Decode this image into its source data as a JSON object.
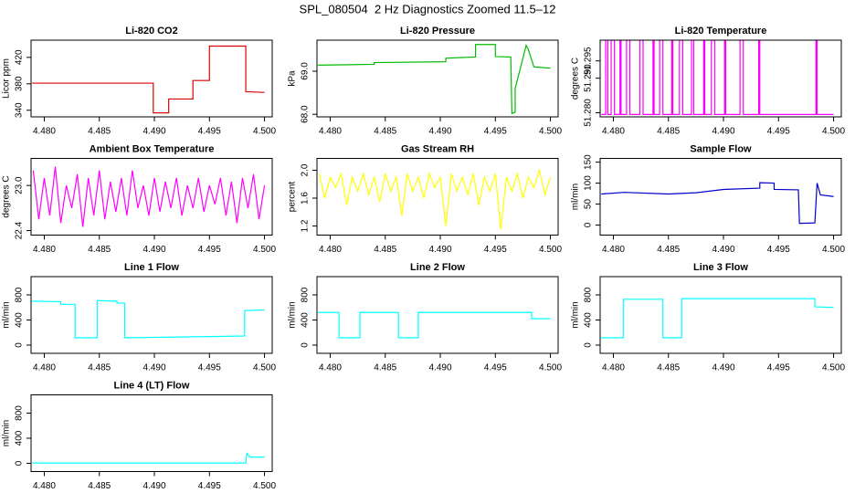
{
  "title": "SPL_080504  2 Hz Diagnostics Zoomed 11.5–12",
  "chart_data": [
    {
      "type": "line",
      "title": "Li-820 CO2",
      "ylabel": "Licor ppm",
      "color": "#dd0000",
      "x": [
        4.4789,
        4.4899,
        4.4899,
        4.4913,
        4.4913,
        4.4935,
        4.4935,
        4.495,
        4.495,
        4.4983,
        4.4983,
        4.5
      ],
      "values": [
        381,
        381,
        336,
        336,
        357,
        357,
        385,
        385,
        437,
        437,
        368,
        367
      ],
      "xlim": [
        4.4788,
        4.5007
      ],
      "xticks": [
        {
          "value": 4.48,
          "label": "4.480"
        },
        {
          "value": 4.485,
          "label": "4.485"
        },
        {
          "value": 4.49,
          "label": "4.490"
        },
        {
          "value": 4.495,
          "label": "4.495"
        },
        {
          "value": 4.5,
          "label": "4.500"
        }
      ],
      "ylim": [
        330,
        446
      ],
      "yticks": [
        340,
        380,
        420
      ]
    },
    {
      "type": "line",
      "title": "Li-820 Pressure",
      "ylabel": "kPa",
      "color": "#00bb00",
      "x": [
        4.4789,
        4.484,
        4.484,
        4.4905,
        4.4905,
        4.4932,
        4.4932,
        4.495,
        4.495,
        4.4964,
        4.4965,
        4.4968,
        4.4968,
        4.4978,
        4.498,
        4.4985,
        4.5
      ],
      "values": [
        69.14,
        69.16,
        69.2,
        69.22,
        69.3,
        69.33,
        69.62,
        69.62,
        69.34,
        69.33,
        68.02,
        68.05,
        68.6,
        69.6,
        69.5,
        69.1,
        69.07
      ],
      "xlim": [
        4.4788,
        4.5007
      ],
      "xticks": [
        {
          "value": 4.48,
          "label": "4.480"
        },
        {
          "value": 4.485,
          "label": "4.485"
        },
        {
          "value": 4.49,
          "label": "4.490"
        },
        {
          "value": 4.495,
          "label": "4.495"
        },
        {
          "value": 4.5,
          "label": "4.500"
        }
      ],
      "ylim": [
        67.94,
        69.72
      ],
      "yticks": [
        {
          "value": 68,
          "label": "68.0"
        },
        {
          "value": 69,
          "label": "69.0"
        }
      ]
    },
    {
      "type": "line",
      "title": "Li-820 Temperature",
      "ylabel": "degrees C",
      "color": "#ff00ff",
      "x": [
        4.4789,
        4.4793,
        4.4793,
        4.4795,
        4.4795,
        4.4798,
        4.4798,
        4.4801,
        4.4801,
        4.4806,
        4.4806,
        4.4807,
        4.4807,
        4.4812,
        4.4812,
        4.4815,
        4.4815,
        4.4824,
        4.4824,
        4.4827,
        4.4827,
        4.4836,
        4.4836,
        4.4837,
        4.4837,
        4.4842,
        4.4842,
        4.4845,
        4.4845,
        4.4853,
        4.4853,
        4.4854,
        4.4854,
        4.486,
        4.486,
        4.4863,
        4.4863,
        4.4871,
        4.4871,
        4.4873,
        4.4873,
        4.4882,
        4.4882,
        4.4883,
        4.4883,
        4.4889,
        4.4889,
        4.4892,
        4.4892,
        4.4901,
        4.4901,
        4.4902,
        4.4902,
        4.4915,
        4.4915,
        4.4918,
        4.4918,
        4.4932,
        4.4932,
        4.4933,
        4.4933,
        4.4984,
        4.4984,
        4.4985,
        4.4985,
        4.5
      ],
      "values": [
        51.2795,
        51.2795,
        51.301,
        51.301,
        51.2795,
        51.2795,
        51.301,
        51.301,
        51.2795,
        51.2795,
        51.301,
        51.301,
        51.2795,
        51.2795,
        51.301,
        51.301,
        51.2795,
        51.2795,
        51.301,
        51.301,
        51.2795,
        51.2795,
        51.301,
        51.301,
        51.2795,
        51.2795,
        51.301,
        51.301,
        51.2795,
        51.2795,
        51.301,
        51.301,
        51.2795,
        51.2795,
        51.301,
        51.301,
        51.2795,
        51.2795,
        51.301,
        51.301,
        51.2795,
        51.2795,
        51.301,
        51.301,
        51.2795,
        51.2795,
        51.301,
        51.301,
        51.2795,
        51.2795,
        51.301,
        51.301,
        51.2795,
        51.2795,
        51.301,
        51.301,
        51.2795,
        51.2795,
        51.301,
        51.301,
        51.2795,
        51.2795,
        51.301,
        51.301,
        51.2795,
        51.2795
      ],
      "xlim": [
        4.4788,
        4.5007
      ],
      "xticks": [
        {
          "value": 4.48,
          "label": "4.480"
        },
        {
          "value": 4.485,
          "label": "4.485"
        },
        {
          "value": 4.49,
          "label": "4.490"
        },
        {
          "value": 4.495,
          "label": "4.495"
        },
        {
          "value": 4.5,
          "label": "4.500"
        }
      ],
      "ylim": [
        51.2788,
        51.301
      ],
      "yticks": [
        {
          "value": 51.28,
          "label": "51.280"
        },
        {
          "value": 51.29,
          "label": "51.290"
        },
        {
          "value": 51.295,
          "label": "51.295"
        }
      ]
    },
    {
      "type": "line",
      "title": "Ambient Box Temperature",
      "ylabel": "degrees C",
      "color": "#ff00ff",
      "x": [
        4.479,
        4.4795,
        4.48,
        4.4805,
        4.481,
        4.4815,
        4.482,
        4.4825,
        4.483,
        4.4835,
        4.484,
        4.4845,
        4.485,
        4.4855,
        4.486,
        4.4865,
        4.487,
        4.4875,
        4.488,
        4.4885,
        4.489,
        4.4895,
        4.49,
        4.4905,
        4.491,
        4.4915,
        4.492,
        4.4925,
        4.493,
        4.4935,
        4.494,
        4.4945,
        4.495,
        4.4955,
        4.496,
        4.4965,
        4.497,
        4.4975,
        4.498,
        4.4985,
        4.499,
        4.4995,
        4.5
      ],
      "values": [
        23.2,
        22.55,
        23.1,
        22.6,
        23.25,
        22.5,
        23.0,
        22.7,
        23.15,
        22.45,
        23.1,
        22.6,
        23.2,
        22.55,
        23.05,
        22.65,
        23.1,
        22.6,
        23.2,
        22.7,
        23.0,
        22.6,
        23.1,
        22.65,
        23.05,
        22.7,
        23.1,
        22.6,
        23.0,
        22.7,
        23.1,
        22.65,
        23.0,
        22.75,
        23.1,
        22.6,
        23.05,
        22.5,
        23.1,
        22.7,
        23.15,
        22.55,
        23.0
      ],
      "xlim": [
        4.4788,
        4.5007
      ],
      "xticks": [
        {
          "value": 4.48,
          "label": "4.480"
        },
        {
          "value": 4.485,
          "label": "4.485"
        },
        {
          "value": 4.49,
          "label": "4.490"
        },
        {
          "value": 4.495,
          "label": "4.495"
        },
        {
          "value": 4.5,
          "label": "4.500"
        }
      ],
      "ylim": [
        22.34,
        23.36
      ],
      "yticks": [
        22.4,
        {
          "value": 23,
          "label": "23.0"
        }
      ]
    },
    {
      "type": "line",
      "title": "Gas Stream RH",
      "ylabel": "percent",
      "color": "#ffff00",
      "x": [
        4.479,
        4.4795,
        4.48,
        4.4805,
        4.481,
        4.4815,
        4.482,
        4.4825,
        4.483,
        4.4835,
        4.484,
        4.4845,
        4.485,
        4.4855,
        4.486,
        4.4865,
        4.487,
        4.4875,
        4.488,
        4.4885,
        4.489,
        4.4895,
        4.49,
        4.4905,
        4.491,
        4.4915,
        4.492,
        4.4925,
        4.493,
        4.4935,
        4.494,
        4.4945,
        4.495,
        4.4955,
        4.496,
        4.4965,
        4.497,
        4.4975,
        4.498,
        4.4985,
        4.499,
        4.4995,
        4.5
      ],
      "values": [
        1.95,
        1.6,
        1.9,
        1.75,
        1.95,
        1.5,
        1.9,
        1.7,
        1.95,
        1.65,
        1.9,
        1.55,
        1.95,
        1.7,
        1.9,
        1.35,
        1.95,
        1.7,
        1.9,
        1.6,
        1.95,
        1.75,
        1.9,
        1.2,
        1.95,
        1.7,
        1.9,
        1.65,
        1.95,
        1.5,
        1.9,
        1.7,
        1.95,
        1.15,
        1.9,
        1.7,
        1.95,
        1.6,
        1.9,
        1.75,
        2.0,
        1.65,
        1.9
      ],
      "xlim": [
        4.4788,
        4.5007
      ],
      "xticks": [
        {
          "value": 4.48,
          "label": "4.480"
        },
        {
          "value": 4.485,
          "label": "4.485"
        },
        {
          "value": 4.49,
          "label": "4.490"
        },
        {
          "value": 4.495,
          "label": "4.495"
        },
        {
          "value": 4.5,
          "label": "4.500"
        }
      ],
      "ylim": [
        1.07,
        2.17
      ],
      "yticks": [
        1.2,
        1.6,
        {
          "value": 2,
          "label": "2.0"
        }
      ]
    },
    {
      "type": "line",
      "title": "Sample Flow",
      "ylabel": "ml/min",
      "color": "#0000cc",
      "x": [
        4.4789,
        4.481,
        4.485,
        4.4875,
        4.49,
        4.4933,
        4.4933,
        4.4946,
        4.4946,
        4.4968,
        4.4969,
        4.4983,
        4.4985,
        4.4988,
        4.5
      ],
      "values": [
        74,
        78,
        74,
        77,
        85,
        88,
        101,
        100,
        85,
        84,
        4,
        5,
        100,
        72,
        68
      ],
      "xlim": [
        4.4788,
        4.5007
      ],
      "xticks": [
        {
          "value": 4.48,
          "label": "4.480"
        },
        {
          "value": 4.485,
          "label": "4.485"
        },
        {
          "value": 4.49,
          "label": "4.490"
        },
        {
          "value": 4.495,
          "label": "4.495"
        },
        {
          "value": 4.5,
          "label": "4.500"
        }
      ],
      "ylim": [
        -24,
        159
      ],
      "yticks": [
        0,
        50,
        100,
        150
      ]
    },
    {
      "type": "line",
      "title": "Line 1 Flow",
      "ylabel": "ml/min",
      "color": "#00ffff",
      "x": [
        4.4789,
        4.4815,
        4.4815,
        4.4828,
        4.4828,
        4.4848,
        4.4848,
        4.4866,
        4.4866,
        4.4873,
        4.4873,
        4.4982,
        4.4982,
        4.5
      ],
      "values": [
        700,
        690,
        650,
        650,
        116,
        116,
        710,
        700,
        670,
        670,
        116,
        145,
        550,
        560
      ],
      "xlim": [
        4.4788,
        4.5007
      ],
      "xticks": [
        {
          "value": 4.48,
          "label": "4.480"
        },
        {
          "value": 4.485,
          "label": "4.485"
        },
        {
          "value": 4.49,
          "label": "4.490"
        },
        {
          "value": 4.495,
          "label": "4.495"
        },
        {
          "value": 4.5,
          "label": "4.500"
        }
      ],
      "ylim": [
        -131,
        1091
      ],
      "yticks": [
        0,
        400,
        800
      ]
    },
    {
      "type": "line",
      "title": "Line 2 Flow",
      "ylabel": "ml/min",
      "color": "#00ffff",
      "x": [
        4.4789,
        4.4808,
        4.4808,
        4.4827,
        4.4827,
        4.4862,
        4.4862,
        4.488,
        4.488,
        4.4983,
        4.4983,
        4.5
      ],
      "values": [
        520,
        520,
        116,
        116,
        520,
        520,
        116,
        116,
        520,
        520,
        420,
        420
      ],
      "xlim": [
        4.4788,
        4.5007
      ],
      "xticks": [
        {
          "value": 4.48,
          "label": "4.480"
        },
        {
          "value": 4.485,
          "label": "4.485"
        },
        {
          "value": 4.49,
          "label": "4.490"
        },
        {
          "value": 4.495,
          "label": "4.495"
        },
        {
          "value": 4.5,
          "label": "4.500"
        }
      ],
      "ylim": [
        -131,
        1091
      ],
      "yticks": [
        0,
        400,
        800
      ]
    },
    {
      "type": "line",
      "title": "Line 3 Flow",
      "ylabel": "ml/min",
      "color": "#00ffff",
      "x": [
        4.4789,
        4.4809,
        4.4809,
        4.4845,
        4.4845,
        4.4862,
        4.4862,
        4.4983,
        4.4983,
        4.5
      ],
      "values": [
        116,
        116,
        730,
        730,
        116,
        116,
        740,
        740,
        610,
        600
      ],
      "xlim": [
        4.4788,
        4.5007
      ],
      "xticks": [
        {
          "value": 4.48,
          "label": "4.480"
        },
        {
          "value": 4.485,
          "label": "4.485"
        },
        {
          "value": 4.49,
          "label": "4.490"
        },
        {
          "value": 4.495,
          "label": "4.495"
        },
        {
          "value": 4.5,
          "label": "4.500"
        }
      ],
      "ylim": [
        -131,
        1091
      ],
      "yticks": [
        0,
        400,
        800
      ]
    },
    {
      "type": "line",
      "title": "Line 4 (LT) Flow",
      "ylabel": "ml/min",
      "color": "#00ffff",
      "x": [
        4.4789,
        4.4983,
        4.4984,
        4.4987,
        4.5
      ],
      "values": [
        5,
        5,
        160,
        100,
        100
      ],
      "xlim": [
        4.4788,
        4.5007
      ],
      "xticks": [
        {
          "value": 4.48,
          "label": "4.480"
        },
        {
          "value": 4.485,
          "label": "4.485"
        },
        {
          "value": 4.49,
          "label": "4.490"
        },
        {
          "value": 4.495,
          "label": "4.495"
        },
        {
          "value": 4.5,
          "label": "4.500"
        }
      ],
      "ylim": [
        -131,
        1091
      ],
      "yticks": [
        0,
        400,
        800
      ]
    }
  ]
}
